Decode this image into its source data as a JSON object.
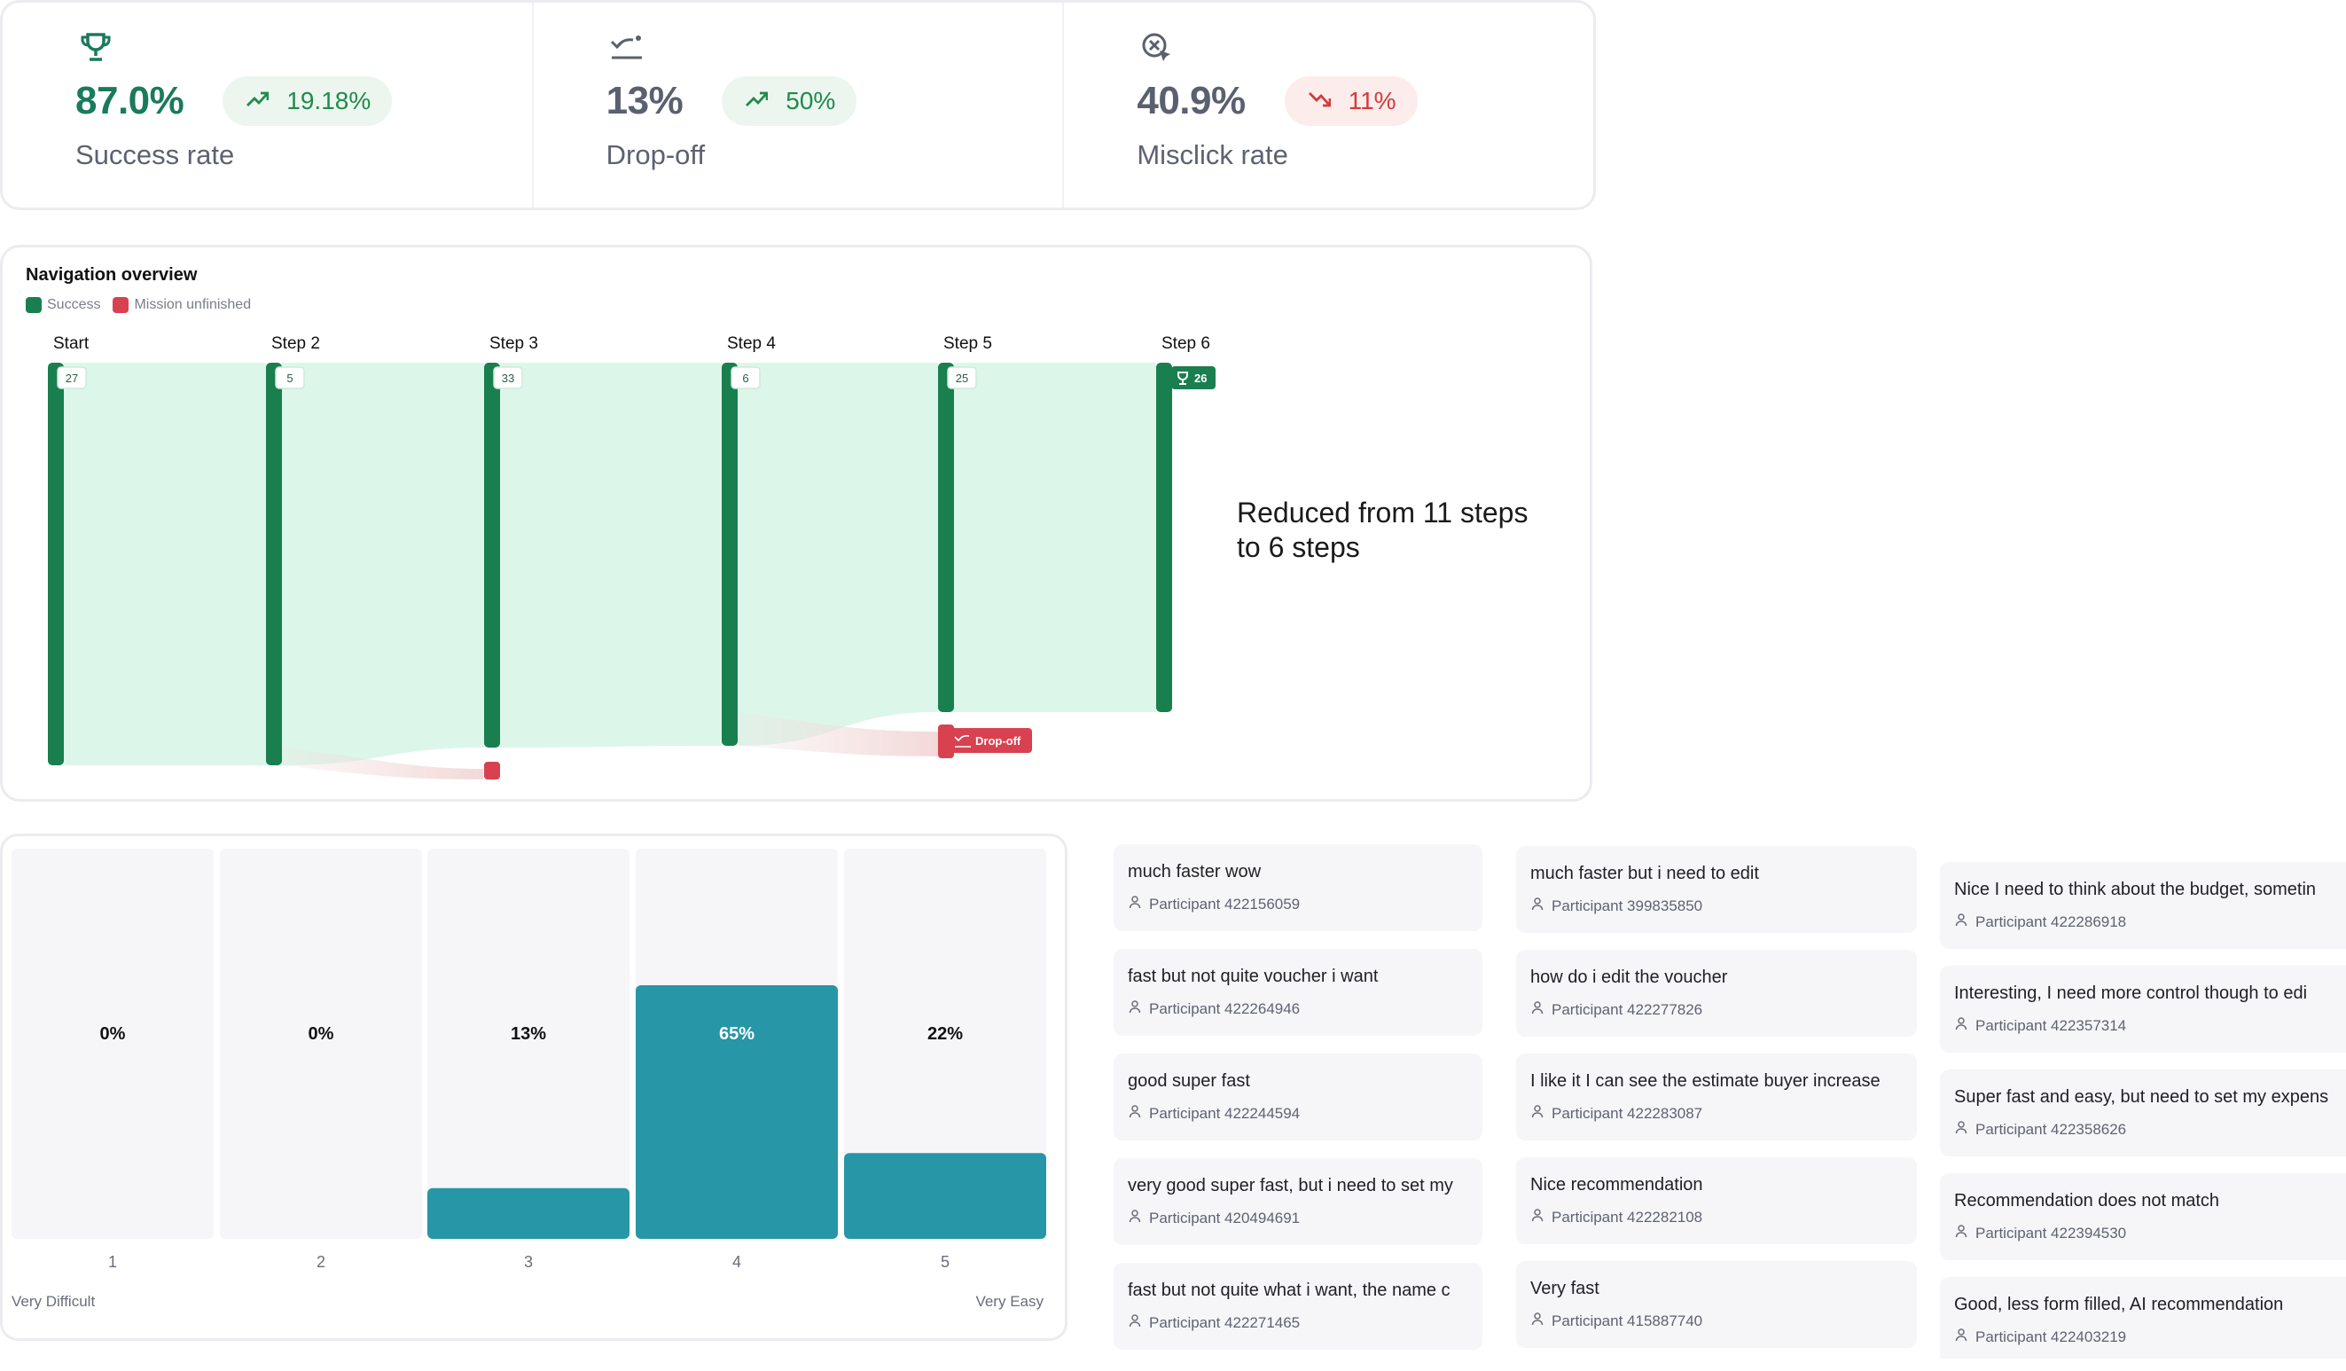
{
  "metrics": [
    {
      "value": "87.0%",
      "value_color": "#1a7a5c",
      "badge": "19.18%",
      "trend": "up",
      "label": "Success rate",
      "icon": "trophy-icon"
    },
    {
      "value": "13%",
      "value_color": "#5b6070",
      "badge": "50%",
      "trend": "up",
      "label": "Drop-off",
      "icon": "drop-off-icon"
    },
    {
      "value": "40.9%",
      "value_color": "#5b6070",
      "badge": "11%",
      "trend": "down",
      "label": "Misclick rate",
      "icon": "misclick-icon"
    }
  ],
  "navigation": {
    "title": "Navigation overview",
    "legend": [
      {
        "label": "Success",
        "color": "#1a7f4f"
      },
      {
        "label": "Mission unfinished",
        "color": "#d8414f"
      }
    ],
    "steps": [
      {
        "label": "Start",
        "count": "27"
      },
      {
        "label": "Step 2",
        "count": "5"
      },
      {
        "label": "Step 3",
        "count": "33"
      },
      {
        "label": "Step 4",
        "count": "6"
      },
      {
        "label": "Step 5",
        "count": "25"
      },
      {
        "label": "Step 6",
        "count": "26",
        "final": true
      }
    ],
    "dropoff_label": "Drop-off",
    "note": "Reduced from 11 steps to 6 steps"
  },
  "chart_data": {
    "type": "bar",
    "categories": [
      "1",
      "2",
      "3",
      "4",
      "5"
    ],
    "values": [
      0,
      0,
      13,
      65,
      22
    ],
    "value_labels": [
      "0%",
      "0%",
      "13%",
      "65%",
      "22%"
    ],
    "ylim": [
      0,
      100
    ],
    "scale_start_label": "Very Difficult",
    "scale_end_label": "Very Easy",
    "bar_color": "#2796a6",
    "track_color": "#f6f6f9"
  },
  "comments": {
    "columns": [
      [
        {
          "text": "much faster wow",
          "participant": "Participant 422156059"
        },
        {
          "text": "fast but not quite voucher i want",
          "participant": "Participant 422264946"
        },
        {
          "text": "good super fast",
          "participant": "Participant 422244594"
        },
        {
          "text": "very good super fast, but i need to set my",
          "participant": "Participant 420494691"
        },
        {
          "text": "fast but not quite what i want, the name c",
          "participant": "Participant 422271465"
        }
      ],
      [
        {
          "text": "much faster but i need to edit",
          "participant": "Participant 399835850"
        },
        {
          "text": "how do i edit the voucher",
          "participant": "Participant 422277826"
        },
        {
          "text": "I like it I can see the estimate buyer increase",
          "participant": "Participant 422283087"
        },
        {
          "text": "Nice recommendation",
          "participant": "Participant 422282108"
        },
        {
          "text": "Very fast",
          "participant": "Participant 415887740"
        }
      ],
      [
        {
          "text": "Nice I need to think about the budget, sometin",
          "participant": "Participant 422286918"
        },
        {
          "text": "Interesting, I need more control though to edi",
          "participant": "Participant 422357314"
        },
        {
          "text": "Super fast and easy, but need to set my expens",
          "participant": "Participant 422358626"
        },
        {
          "text": "Recommendation does not match",
          "participant": "Participant 422394530"
        },
        {
          "text": "Good, less form filled, AI recommendation",
          "participant": "Participant 422403219"
        }
      ]
    ]
  }
}
